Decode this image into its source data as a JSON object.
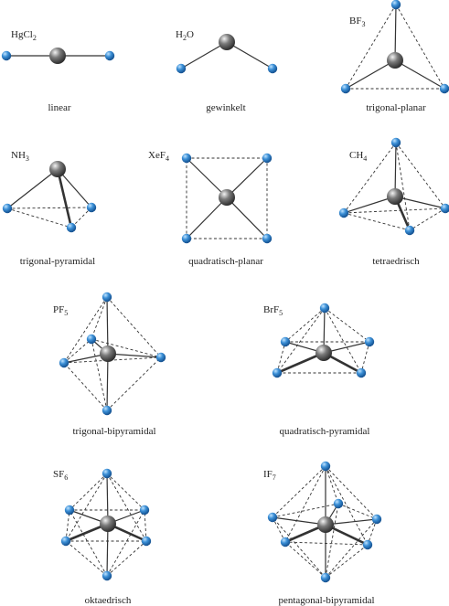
{
  "figure": {
    "colors": {
      "ligand": "#3b8fd6",
      "central": "#6f6f6f",
      "bond": "#333333",
      "edge": "#333333"
    },
    "molecules": [
      {
        "id": "hgcl2",
        "formula": "HgCl",
        "formula_sub": "2",
        "formula_tail": "",
        "label": "linear"
      },
      {
        "id": "h2o",
        "formula": "H",
        "formula_sub": "2",
        "formula_tail": "O",
        "label": "gewinkelt"
      },
      {
        "id": "bf3",
        "formula": "BF",
        "formula_sub": "3",
        "formula_tail": "",
        "label": "trigonal-planar"
      },
      {
        "id": "nh3",
        "formula": "NH",
        "formula_sub": "3",
        "formula_tail": "",
        "label": "trigonal-pyramidal"
      },
      {
        "id": "xef4",
        "formula": "XeF",
        "formula_sub": "4",
        "formula_tail": "",
        "label": "quadratisch-planar"
      },
      {
        "id": "ch4",
        "formula": "CH",
        "formula_sub": "4",
        "formula_tail": "",
        "label": "tetraedrisch"
      },
      {
        "id": "pf5",
        "formula": "PF",
        "formula_sub": "5",
        "formula_tail": "",
        "label": "trigonal-bipyramidal"
      },
      {
        "id": "brf5",
        "formula": "BrF",
        "formula_sub": "5",
        "formula_tail": "",
        "label": "quadratisch-pyramidal"
      },
      {
        "id": "sf6",
        "formula": "SF",
        "formula_sub": "6",
        "formula_tail": "",
        "label": "oktaedrisch"
      },
      {
        "id": "if7",
        "formula": "IF",
        "formula_sub": "7",
        "formula_tail": "",
        "label": "pentagonal-bipyramidal"
      }
    ]
  }
}
